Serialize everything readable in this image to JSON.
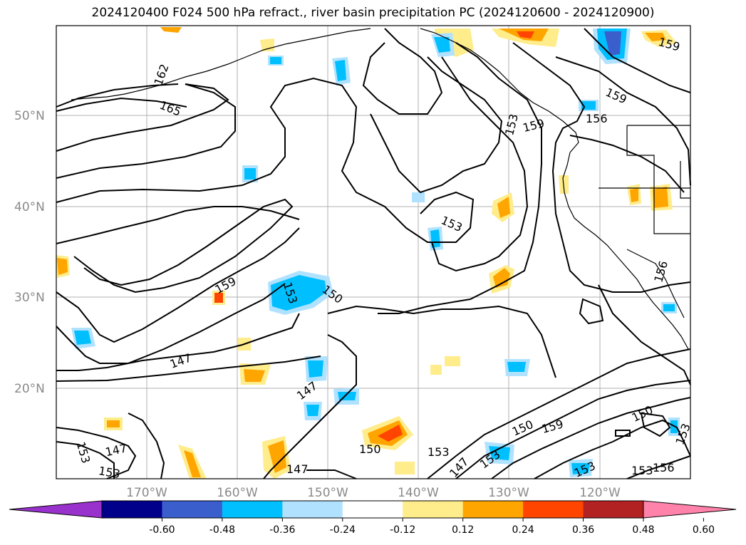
{
  "title": "2024120400 F024 500 hPa refract., river basin precipitation PC (2024120600 - 2024120900)",
  "map": {
    "lat_labels": [
      "50°N",
      "40°N",
      "30°N",
      "20°N"
    ],
    "lon_labels": [
      "170°W",
      "160°W",
      "150°W",
      "140°W",
      "130°W",
      "120°W"
    ],
    "contour_labels": [
      "162",
      "165",
      "159",
      "153",
      "150",
      "147",
      "147",
      "153",
      "159",
      "156",
      "153",
      "156",
      "150",
      "159",
      "150",
      "153",
      "147",
      "153",
      "159",
      "156",
      "147",
      "150",
      "147",
      "153",
      "153",
      "153",
      "159",
      "153",
      "153"
    ]
  },
  "colorbar": {
    "ticks": [
      "-0.60",
      "-0.48",
      "-0.36",
      "-0.24",
      "-0.12",
      "0.12",
      "0.24",
      "0.36",
      "0.48",
      "0.60"
    ],
    "colors": [
      "#9932cc",
      "#00008b",
      "#3a5fcd",
      "#00bfff",
      "#b0e2ff",
      "#ffffff",
      "#ffec8b",
      "#ffa500",
      "#ff4500",
      "#b22222",
      "#ff82ab"
    ]
  }
}
